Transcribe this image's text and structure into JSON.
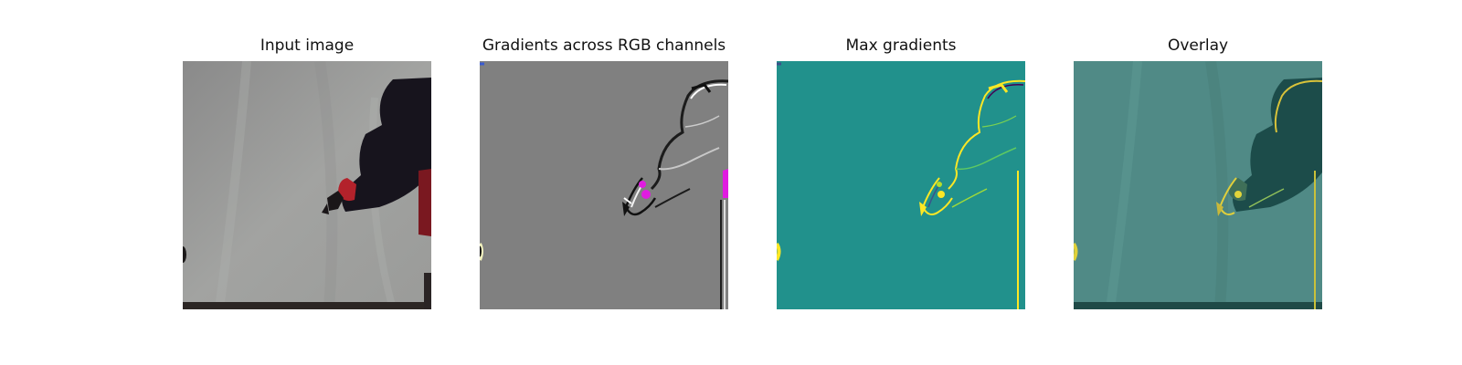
{
  "figure": {
    "panels": [
      {
        "title": "Input image"
      },
      {
        "title": "Gradients across RGB channels"
      },
      {
        "title": "Max gradients"
      },
      {
        "title": "Overlay"
      }
    ]
  },
  "colors": {
    "background_gray": "#8e8e8e",
    "gradient_gray": "#808080",
    "viridis_mid": "#21918c",
    "viridis_yellow": "#fde725",
    "overlay_teal": "#4f8f8a",
    "robot_dark": "#16121e",
    "gripper_red": "#b3222b",
    "magenta": "#e01ce0"
  }
}
